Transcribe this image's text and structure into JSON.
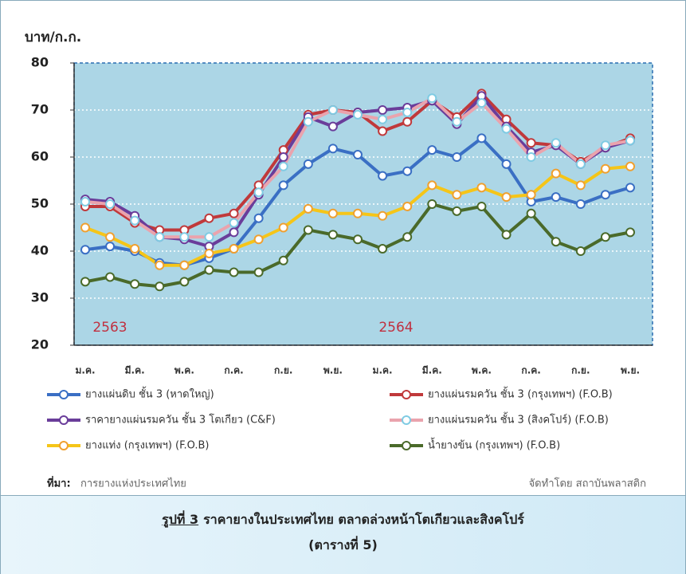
{
  "chart_data": {
    "type": "line",
    "y_label": "บาท/ก.ก.",
    "categories": [
      "ม.ค.",
      null,
      "มี.ค.",
      null,
      "พ.ค.",
      null,
      "ก.ค.",
      null,
      "ก.ย.",
      null,
      "พ.ย.",
      null,
      "ม.ค.",
      null,
      "มี.ค.",
      null,
      "พ.ค.",
      null,
      "ก.ค.",
      null,
      "ก.ย.",
      null,
      "พ.ย."
    ],
    "annotations": [
      "2563",
      "2564"
    ],
    "ylim": [
      20,
      80
    ],
    "yticks": [
      20,
      30,
      40,
      50,
      60,
      70,
      80
    ],
    "grid": true,
    "series": [
      {
        "name": "ยางแผ่นดิบ ชั้น 3 (หาดใหญ่)",
        "color": "#3a6fc4",
        "marker_color": "#3a6fc4",
        "values": [
          40.3,
          41,
          40,
          37.5,
          37,
          38.5,
          40.5,
          47,
          54,
          58.5,
          61.8,
          60.5,
          56,
          57,
          61.5,
          60,
          64,
          58.5,
          50.5,
          51.5,
          50,
          52,
          53.5
        ]
      },
      {
        "name": "ยางแผ่นรมควัน ชั้น 3 (กรุงเทพฯ) (F.O.B)",
        "color": "#c0393b",
        "marker_color": "#c0393b",
        "values": [
          49.5,
          49.5,
          46,
          44.5,
          44.5,
          47,
          48,
          54,
          61.5,
          69,
          70,
          69.5,
          65.5,
          67.5,
          72,
          68.5,
          73.5,
          68,
          63,
          62.5,
          59,
          62,
          64
        ]
      },
      {
        "name": "ราคายางแผ่นรมควัน ชั้น 3 โตเกียว (C&F)",
        "color": "#6a3d9a",
        "marker_color": "#6a3d9a",
        "values": [
          51,
          50.5,
          47.5,
          43,
          42.5,
          41,
          44,
          52,
          60,
          68.5,
          66.5,
          69.5,
          70,
          70.5,
          72,
          67,
          73,
          66.5,
          61,
          62.5,
          58.5,
          62,
          63.5
        ]
      },
      {
        "name": "ยางแผ่นรมควัน ชั้น 3 (สิงคโปร์) (F.O.B)",
        "color": "#eaa3ad",
        "marker_color": "#7fcbe3",
        "values": [
          50.5,
          50,
          46.5,
          43,
          43,
          43,
          46,
          52.5,
          58,
          67.5,
          70,
          69,
          68,
          69.5,
          72.5,
          67.5,
          71.5,
          66,
          60,
          63,
          58.5,
          62.5,
          63.5
        ]
      },
      {
        "name": "ยางแท่ง (กรุงเทพฯ) (F.O.B)",
        "color": "#f5c518",
        "marker_color": "#f0a030",
        "values": [
          45,
          43,
          40.5,
          37,
          37,
          39.5,
          40.5,
          42.5,
          45,
          49,
          48,
          48,
          47.5,
          49.5,
          54,
          52,
          53.5,
          51.5,
          52,
          56.5,
          54,
          57.5,
          58
        ]
      },
      {
        "name": "น้ำยางข้น (กรุงเทพฯ) (F.O.B)",
        "color": "#4a6a2a",
        "marker_color": "#4a6a2a",
        "values": [
          33.5,
          34.5,
          33,
          32.5,
          33.5,
          36,
          35.5,
          35.5,
          38,
          44.5,
          43.5,
          42.5,
          40.5,
          43,
          50,
          48.5,
          49.5,
          43.5,
          48,
          42,
          40,
          43,
          44
        ]
      }
    ],
    "source_label": "ที่มา:",
    "source": "การยางแห่งประเทศไทย",
    "credit": "จัดทำโดย สถาบันพลาสติก"
  },
  "caption": {
    "label": "รูปที่ 3",
    "text": "ราคายางในประเทศไทย ตลาดล่วงหน้าโตเกียวและสิงคโปร์",
    "line2": "(ตารางที่ 5)"
  }
}
